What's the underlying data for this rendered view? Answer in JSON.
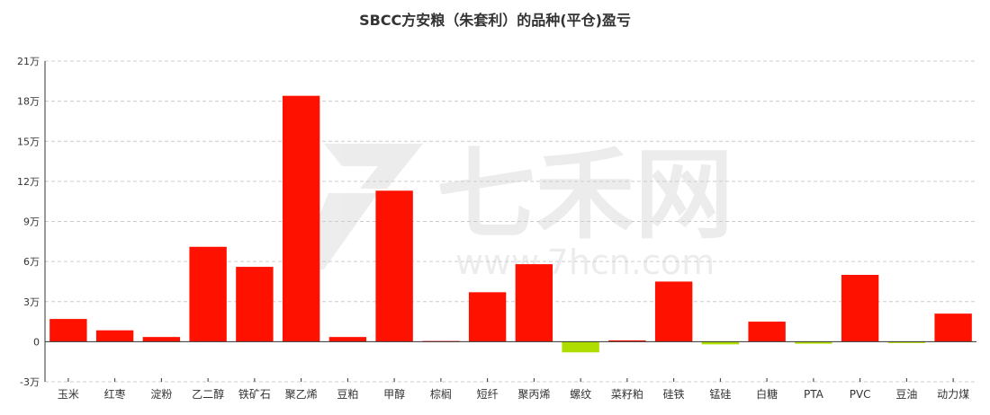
{
  "chart_data": {
    "type": "bar",
    "title": "SBCC方安粮（朱套利）的品种(平仓)盈亏",
    "xlabel": "",
    "ylabel": "",
    "ylim": [
      -3,
      21
    ],
    "yticks": [
      {
        "value": 21,
        "label": "21万"
      },
      {
        "value": 18,
        "label": "18万"
      },
      {
        "value": 15,
        "label": "15万"
      },
      {
        "value": 12,
        "label": "12万"
      },
      {
        "value": 9,
        "label": "9万"
      },
      {
        "value": 6,
        "label": "6万"
      },
      {
        "value": 3,
        "label": "3万"
      },
      {
        "value": 0,
        "label": "0"
      },
      {
        "value": -3,
        "label": "-3万"
      }
    ],
    "grid": true,
    "categories": [
      "玉米",
      "红枣",
      "淀粉",
      "乙二醇",
      "铁矿石",
      "聚乙烯",
      "豆粕",
      "甲醇",
      "棕榈",
      "短纤",
      "聚丙烯",
      "螺纹",
      "菜籽粕",
      "硅铁",
      "锰硅",
      "白糖",
      "PTA",
      "PVC",
      "豆油",
      "动力煤"
    ],
    "values": [
      1.7,
      0.85,
      0.35,
      7.1,
      5.6,
      18.4,
      0.35,
      11.3,
      0.05,
      3.7,
      5.8,
      -0.8,
      0.1,
      4.5,
      -0.2,
      1.5,
      -0.15,
      5.0,
      -0.1,
      2.1
    ],
    "colors": {
      "positive": "#ff1100",
      "negative": "#b0dd00",
      "axis": "#333333",
      "grid": "#cccccc"
    }
  },
  "watermark": {
    "main": "七禾网",
    "url": "www.7hcn.com"
  }
}
